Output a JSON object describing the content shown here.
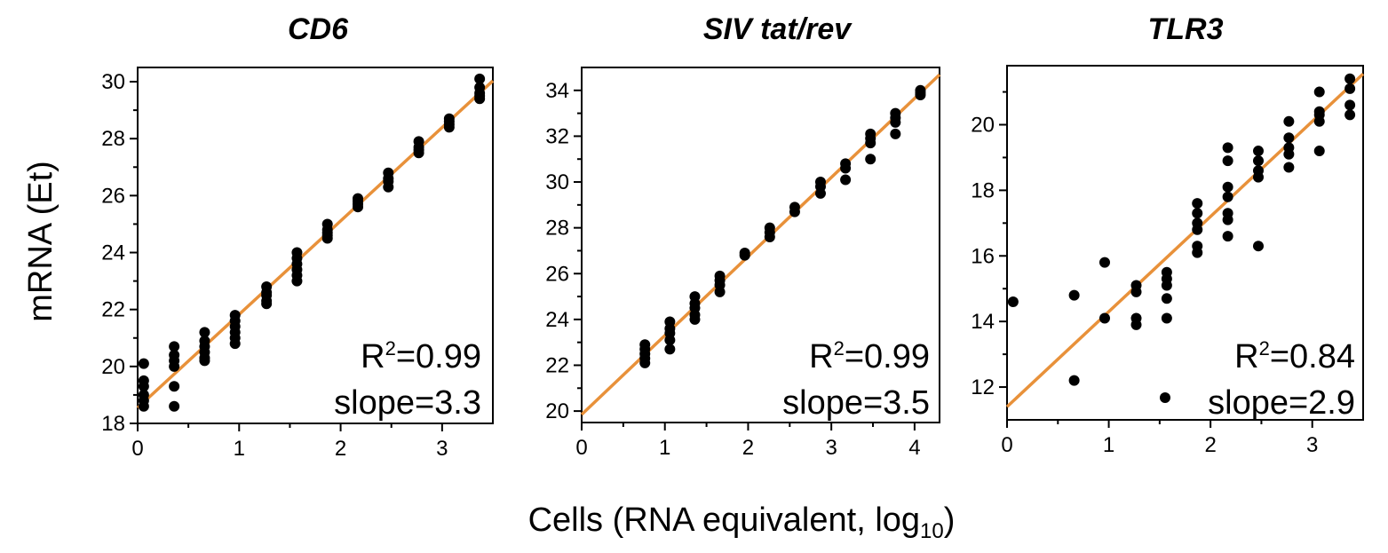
{
  "figure": {
    "ylabel": "mRNA (Et)",
    "xlabel_main": "Cells (RNA equivalent, log",
    "xlabel_sub": "10",
    "xlabel_close": ")"
  },
  "colors": {
    "points": "#000000",
    "fit": "#E8913A",
    "axes": "#000000"
  },
  "chart_data": [
    {
      "type": "scatter",
      "title": "CD6",
      "xlim": [
        0,
        3.5
      ],
      "ylim": [
        18,
        30.5
      ],
      "x_ticks": [
        0,
        1,
        2,
        3
      ],
      "x_tick_labels": [
        "0",
        "1",
        "2",
        "3"
      ],
      "y_ticks": [
        18,
        20,
        22,
        24,
        26,
        28,
        30
      ],
      "y_tick_labels": [
        "18",
        "20",
        "22",
        "24",
        "26",
        "28",
        "30"
      ],
      "fit": {
        "intercept": 18.55,
        "slope": 3.28,
        "x_range": [
          0,
          3.5
        ]
      },
      "annot": {
        "r2_base": "R",
        "r2_sup": "2",
        "r2_value": "=0.99",
        "slope": "slope=3.3"
      },
      "points": [
        [
          0.06,
          20.1
        ],
        [
          0.06,
          19.5
        ],
        [
          0.06,
          19.3
        ],
        [
          0.06,
          19.0
        ],
        [
          0.06,
          18.8
        ],
        [
          0.06,
          18.6
        ],
        [
          0.36,
          20.7
        ],
        [
          0.36,
          20.4
        ],
        [
          0.36,
          20.2
        ],
        [
          0.36,
          20.0
        ],
        [
          0.36,
          19.3
        ],
        [
          0.36,
          18.6
        ],
        [
          0.66,
          21.2
        ],
        [
          0.66,
          20.9
        ],
        [
          0.66,
          20.7
        ],
        [
          0.66,
          20.5
        ],
        [
          0.66,
          20.3
        ],
        [
          0.66,
          20.2
        ],
        [
          0.96,
          21.8
        ],
        [
          0.96,
          21.6
        ],
        [
          0.96,
          21.4
        ],
        [
          0.96,
          21.2
        ],
        [
          0.96,
          21.0
        ],
        [
          0.96,
          20.8
        ],
        [
          1.27,
          22.8
        ],
        [
          1.27,
          22.6
        ],
        [
          1.27,
          22.5
        ],
        [
          1.27,
          22.3
        ],
        [
          1.27,
          22.2
        ],
        [
          1.57,
          24.0
        ],
        [
          1.57,
          23.8
        ],
        [
          1.57,
          23.6
        ],
        [
          1.57,
          23.4
        ],
        [
          1.57,
          23.2
        ],
        [
          1.57,
          23.0
        ],
        [
          1.87,
          25.0
        ],
        [
          1.87,
          24.8
        ],
        [
          1.87,
          24.7
        ],
        [
          1.87,
          24.6
        ],
        [
          1.87,
          24.5
        ],
        [
          2.17,
          25.9
        ],
        [
          2.17,
          25.8
        ],
        [
          2.17,
          25.7
        ],
        [
          2.17,
          25.6
        ],
        [
          2.47,
          26.8
        ],
        [
          2.47,
          26.6
        ],
        [
          2.47,
          26.5
        ],
        [
          2.47,
          26.3
        ],
        [
          2.77,
          27.9
        ],
        [
          2.77,
          27.7
        ],
        [
          2.77,
          27.6
        ],
        [
          2.77,
          27.5
        ],
        [
          3.07,
          28.7
        ],
        [
          3.07,
          28.6
        ],
        [
          3.07,
          28.5
        ],
        [
          3.07,
          28.4
        ],
        [
          3.37,
          30.1
        ],
        [
          3.37,
          29.8
        ],
        [
          3.37,
          29.6
        ],
        [
          3.37,
          29.5
        ],
        [
          3.37,
          29.4
        ]
      ]
    },
    {
      "type": "scatter",
      "title": "SIV tat/rev",
      "xlim": [
        0,
        4.3
      ],
      "ylim": [
        19.5,
        35
      ],
      "x_ticks": [
        0,
        1,
        2,
        3,
        4
      ],
      "x_tick_labels": [
        "0",
        "1",
        "2",
        "3",
        "4"
      ],
      "y_ticks": [
        20,
        22,
        24,
        26,
        28,
        30,
        32,
        34
      ],
      "y_tick_labels": [
        "20",
        "22",
        "24",
        "26",
        "28",
        "30",
        "32",
        "34"
      ],
      "fit": {
        "intercept": 19.85,
        "slope": 3.45,
        "x_range": [
          0,
          4.3
        ]
      },
      "annot": {
        "r2_base": "R",
        "r2_sup": "2",
        "r2_value": "=0.99",
        "slope": "slope=3.5"
      },
      "points": [
        [
          0.76,
          22.9
        ],
        [
          0.76,
          22.7
        ],
        [
          0.76,
          22.5
        ],
        [
          0.76,
          22.3
        ],
        [
          0.76,
          22.1
        ],
        [
          1.06,
          23.9
        ],
        [
          1.06,
          23.6
        ],
        [
          1.06,
          23.4
        ],
        [
          1.06,
          23.1
        ],
        [
          1.06,
          22.7
        ],
        [
          1.36,
          25.0
        ],
        [
          1.36,
          24.7
        ],
        [
          1.36,
          24.5
        ],
        [
          1.36,
          24.2
        ],
        [
          1.36,
          24.0
        ],
        [
          1.66,
          25.9
        ],
        [
          1.66,
          25.7
        ],
        [
          1.66,
          25.5
        ],
        [
          1.66,
          25.2
        ],
        [
          1.96,
          26.9
        ],
        [
          1.96,
          26.8
        ],
        [
          2.26,
          28.0
        ],
        [
          2.26,
          27.8
        ],
        [
          2.26,
          27.6
        ],
        [
          2.56,
          28.9
        ],
        [
          2.56,
          28.7
        ],
        [
          2.87,
          30.0
        ],
        [
          2.87,
          29.8
        ],
        [
          2.87,
          29.5
        ],
        [
          3.17,
          30.8
        ],
        [
          3.17,
          30.6
        ],
        [
          3.17,
          30.1
        ],
        [
          3.47,
          32.1
        ],
        [
          3.47,
          31.9
        ],
        [
          3.47,
          31.7
        ],
        [
          3.47,
          31.0
        ],
        [
          3.77,
          33.0
        ],
        [
          3.77,
          32.8
        ],
        [
          3.77,
          32.6
        ],
        [
          3.77,
          32.1
        ],
        [
          4.07,
          34.0
        ],
        [
          4.07,
          33.9
        ],
        [
          4.07,
          33.8
        ]
      ]
    },
    {
      "type": "scatter",
      "title": "TLR3",
      "xlim": [
        0,
        3.5
      ],
      "ylim": [
        11,
        21.8
      ],
      "x_ticks": [
        0,
        1,
        2,
        3
      ],
      "x_tick_labels": [
        "0",
        "1",
        "2",
        "3"
      ],
      "y_ticks": [
        12,
        14,
        16,
        18,
        20
      ],
      "y_tick_labels": [
        "12",
        "14",
        "16",
        "18",
        "20"
      ],
      "fit": {
        "intercept": 11.4,
        "slope": 2.9,
        "x_range": [
          0,
          3.5
        ]
      },
      "annot": {
        "r2_base": "R",
        "r2_sup": "2",
        "r2_value": "=0.84",
        "slope": "slope=2.9"
      },
      "points": [
        [
          0.06,
          14.6
        ],
        [
          0.66,
          14.8
        ],
        [
          0.66,
          12.2
        ],
        [
          0.96,
          15.8
        ],
        [
          0.96,
          14.1
        ],
        [
          1.27,
          15.1
        ],
        [
          1.27,
          14.9
        ],
        [
          1.27,
          14.1
        ],
        [
          1.27,
          13.9
        ],
        [
          1.57,
          15.5
        ],
        [
          1.57,
          15.3
        ],
        [
          1.57,
          15.1
        ],
        [
          1.57,
          14.7
        ],
        [
          1.57,
          14.1
        ],
        [
          1.87,
          17.6
        ],
        [
          1.87,
          17.3
        ],
        [
          1.87,
          17.0
        ],
        [
          1.87,
          16.8
        ],
        [
          1.87,
          16.3
        ],
        [
          1.87,
          16.1
        ],
        [
          2.17,
          19.3
        ],
        [
          2.17,
          18.9
        ],
        [
          2.17,
          18.1
        ],
        [
          2.17,
          17.8
        ],
        [
          2.17,
          17.3
        ],
        [
          2.17,
          17.1
        ],
        [
          2.17,
          16.6
        ],
        [
          2.47,
          19.2
        ],
        [
          2.47,
          18.9
        ],
        [
          2.47,
          18.6
        ],
        [
          2.47,
          18.4
        ],
        [
          2.47,
          16.3
        ],
        [
          2.77,
          20.1
        ],
        [
          2.77,
          19.6
        ],
        [
          2.77,
          19.3
        ],
        [
          2.77,
          19.1
        ],
        [
          2.77,
          18.7
        ],
        [
          3.07,
          21.0
        ],
        [
          3.07,
          20.4
        ],
        [
          3.07,
          20.3
        ],
        [
          3.07,
          20.1
        ],
        [
          3.07,
          19.2
        ],
        [
          3.37,
          21.4
        ],
        [
          3.37,
          21.1
        ],
        [
          3.37,
          20.6
        ],
        [
          3.37,
          20.3
        ]
      ]
    }
  ]
}
